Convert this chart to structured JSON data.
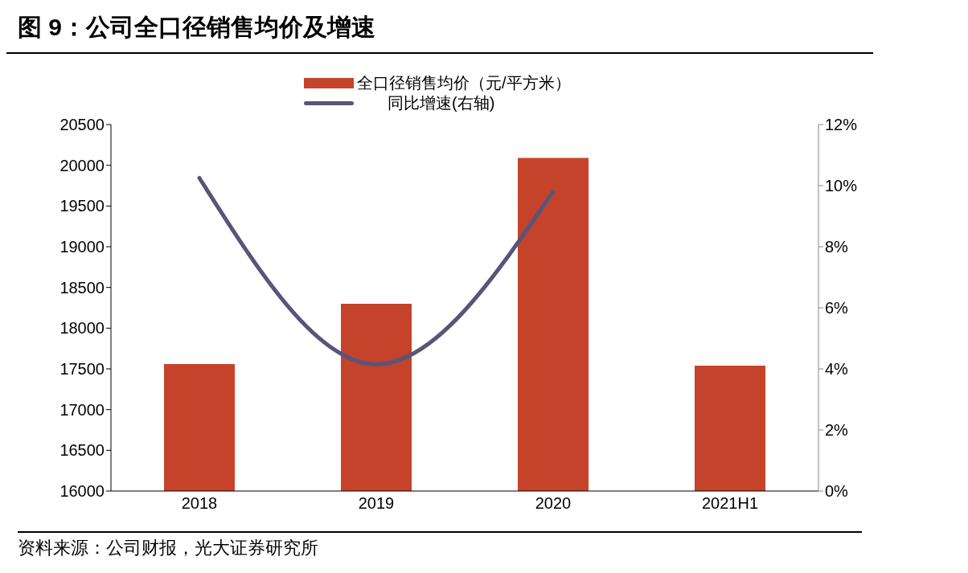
{
  "chart_data": {
    "type": "bar",
    "title": "图 9：公司全口径销售均价及增速",
    "categories": [
      "2018",
      "2019",
      "2020",
      "2021H1"
    ],
    "series": [
      {
        "name": "全口径销售均价（元/平方米）",
        "color": "#c5432a",
        "values": [
          17560,
          18300,
          20090,
          17540
        ]
      },
      {
        "name": "同比增速(右轴)",
        "type": "line",
        "axis": "y2",
        "color": "#57557a",
        "values": [
          10.25,
          4.15,
          9.8,
          null
        ]
      }
    ],
    "ylim": [
      16000,
      20500
    ],
    "yticks": [
      16000,
      16500,
      17000,
      17500,
      18000,
      18500,
      19000,
      19500,
      20000,
      20500
    ],
    "y2lim": [
      0,
      12
    ],
    "y2ticks": [
      {
        "value": 0,
        "label": "0%"
      },
      {
        "value": 2,
        "label": "2%"
      },
      {
        "value": 4,
        "label": "4%"
      },
      {
        "value": 6,
        "label": "6%"
      },
      {
        "value": 8,
        "label": "8%"
      },
      {
        "value": 10,
        "label": "10%"
      },
      {
        "value": 12,
        "label": "12%"
      }
    ],
    "grid": false,
    "legend": "top",
    "marker": "none",
    "line_style": "solid",
    "annotations": [
      "资料来源：公司财报，光大证券研究所"
    ]
  }
}
